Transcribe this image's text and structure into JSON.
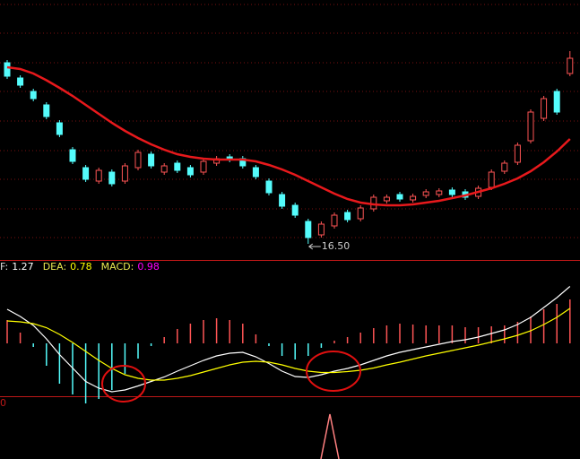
{
  "chart_data": [
    {
      "type": "candlestick",
      "open": [
        20.54,
        20.2,
        19.9,
        19.6,
        19.2,
        18.6,
        18.2,
        17.9,
        18.1,
        17.9,
        18.2,
        18.5,
        18.1,
        18.3,
        18.2,
        18.1,
        18.3,
        18.44,
        18.4,
        18.2,
        17.9,
        17.6,
        17.36,
        17.0,
        16.7,
        16.9,
        17.2,
        17.06,
        17.28,
        17.46,
        17.6,
        17.48,
        17.58,
        17.6,
        17.7,
        17.66,
        17.56,
        17.76,
        18.12,
        18.32,
        18.8,
        19.3,
        19.9,
        20.3
      ],
      "close": [
        20.24,
        20.04,
        19.74,
        19.34,
        18.94,
        18.34,
        17.94,
        18.14,
        17.84,
        18.24,
        18.54,
        18.24,
        18.24,
        18.14,
        18.04,
        18.34,
        18.4,
        18.38,
        18.24,
        18.0,
        17.64,
        17.34,
        17.14,
        16.64,
        16.94,
        17.14,
        17.04,
        17.3,
        17.54,
        17.54,
        17.5,
        17.56,
        17.66,
        17.68,
        17.6,
        17.54,
        17.74,
        18.1,
        18.3,
        18.7,
        19.44,
        19.74,
        19.44,
        20.64
      ],
      "high": [
        20.6,
        20.26,
        19.96,
        19.66,
        19.26,
        18.66,
        18.26,
        18.2,
        18.16,
        18.3,
        18.6,
        18.56,
        18.3,
        18.36,
        18.26,
        18.4,
        18.46,
        18.5,
        18.46,
        18.26,
        17.96,
        17.66,
        17.42,
        17.06,
        17.0,
        17.2,
        17.26,
        17.36,
        17.6,
        17.6,
        17.66,
        17.62,
        17.72,
        17.74,
        17.76,
        17.72,
        17.8,
        18.16,
        18.36,
        18.76,
        19.5,
        19.8,
        19.96,
        20.8
      ],
      "low": [
        20.18,
        19.98,
        19.68,
        19.28,
        18.88,
        18.28,
        17.88,
        17.84,
        17.78,
        17.84,
        18.14,
        18.18,
        18.04,
        18.08,
        17.98,
        18.04,
        18.24,
        18.32,
        18.18,
        17.94,
        17.58,
        17.28,
        17.08,
        16.5,
        16.64,
        16.84,
        16.98,
        17.0,
        17.22,
        17.4,
        17.44,
        17.42,
        17.52,
        17.54,
        17.54,
        17.48,
        17.5,
        17.7,
        18.06,
        18.26,
        18.74,
        19.24,
        19.38,
        20.24
      ],
      "up_color": "#ff5555",
      "down_color": "#54fcfc",
      "ma": {
        "color": "#e8191c",
        "values": [
          20.44,
          20.4,
          20.3,
          20.15,
          19.98,
          19.8,
          19.6,
          19.4,
          19.2,
          19.02,
          18.86,
          18.72,
          18.6,
          18.5,
          18.44,
          18.4,
          18.38,
          18.38,
          18.38,
          18.34,
          18.26,
          18.16,
          18.04,
          17.9,
          17.76,
          17.62,
          17.5,
          17.42,
          17.38,
          17.36,
          17.36,
          17.38,
          17.42,
          17.46,
          17.52,
          17.58,
          17.66,
          17.74,
          17.84,
          17.96,
          18.12,
          18.32,
          18.56,
          18.84
        ]
      },
      "annotation": "16.50",
      "ylim": [
        16.14,
        21.94
      ]
    },
    {
      "type": "macd",
      "series": [
        {
          "name": "F:",
          "color": "#ffffff",
          "values": [
            0.76,
            0.6,
            0.4,
            0.1,
            -0.25,
            -0.55,
            -0.85,
            -1.0,
            -1.08,
            -1.04,
            -0.95,
            -0.85,
            -0.75,
            -0.62,
            -0.5,
            -0.38,
            -0.28,
            -0.22,
            -0.2,
            -0.3,
            -0.45,
            -0.62,
            -0.74,
            -0.76,
            -0.7,
            -0.62,
            -0.56,
            -0.48,
            -0.38,
            -0.28,
            -0.2,
            -0.14,
            -0.08,
            -0.02,
            0.04,
            0.08,
            0.14,
            0.22,
            0.3,
            0.42,
            0.58,
            0.8,
            1.02,
            1.27
          ]
        },
        {
          "name": "DEA:",
          "color": "#ffff00",
          "values": [
            0.5,
            0.48,
            0.44,
            0.35,
            0.2,
            0.02,
            -0.18,
            -0.38,
            -0.56,
            -0.7,
            -0.78,
            -0.82,
            -0.82,
            -0.78,
            -0.72,
            -0.64,
            -0.56,
            -0.48,
            -0.42,
            -0.4,
            -0.42,
            -0.48,
            -0.56,
            -0.62,
            -0.65,
            -0.65,
            -0.63,
            -0.6,
            -0.55,
            -0.48,
            -0.42,
            -0.35,
            -0.28,
            -0.22,
            -0.16,
            -0.1,
            -0.04,
            0.03,
            0.1,
            0.18,
            0.28,
            0.42,
            0.58,
            0.78
          ]
        },
        {
          "name": "MACD:",
          "color": "#ff00ff",
          "up_color": "#ff5555",
          "down_color": "#54fcfc",
          "values": [
            0.52,
            0.24,
            -0.08,
            -0.5,
            -0.9,
            -1.14,
            -1.34,
            -1.24,
            -1.04,
            -0.68,
            -0.34,
            -0.06,
            0.14,
            0.32,
            0.44,
            0.52,
            0.56,
            0.52,
            0.44,
            0.2,
            -0.06,
            -0.28,
            -0.36,
            -0.28,
            -0.1,
            0.06,
            0.14,
            0.24,
            0.34,
            0.4,
            0.44,
            0.42,
            0.4,
            0.4,
            0.4,
            0.36,
            0.36,
            0.38,
            0.4,
            0.48,
            0.6,
            0.76,
            0.88,
            0.98
          ]
        }
      ],
      "ylim": [
        -1.24,
        1.86
      ]
    }
  ],
  "lower_panel": {
    "label": "0"
  }
}
